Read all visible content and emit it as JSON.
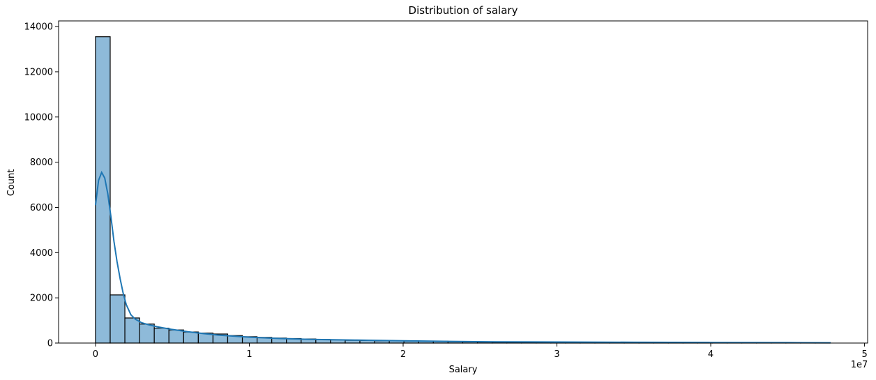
{
  "chart_data": {
    "type": "bar",
    "title": "Distribution of salary",
    "xlabel": "Salary",
    "ylabel": "Count",
    "x_offset_label": "1e7",
    "xlim": [
      -2400000,
      50200000
    ],
    "ylim": [
      0,
      14250
    ],
    "x_ticks": [
      0,
      10000000,
      20000000,
      30000000,
      40000000,
      50000000
    ],
    "x_tick_labels": [
      "0",
      "1",
      "2",
      "3",
      "4",
      "5"
    ],
    "y_ticks": [
      0,
      2000,
      4000,
      6000,
      8000,
      10000,
      12000,
      14000
    ],
    "y_tick_labels": [
      "0",
      "2000",
      "4000",
      "6000",
      "8000",
      "10000",
      "12000",
      "14000"
    ],
    "bin_width": 955000,
    "bin_edges_start": 0,
    "counts": [
      13550,
      2130,
      1110,
      840,
      660,
      580,
      490,
      440,
      400,
      330,
      280,
      250,
      220,
      200,
      180,
      160,
      140,
      120,
      110,
      100,
      95,
      90,
      85,
      80,
      60,
      50,
      45,
      40,
      38,
      35,
      32,
      30,
      28,
      26,
      24,
      22,
      20,
      18,
      17,
      16,
      15,
      14,
      13,
      12,
      11,
      10,
      9,
      8,
      7,
      6
    ],
    "kde": {
      "x": [
        0,
        200000,
        400000,
        600000,
        800000,
        1000000,
        1200000,
        1400000,
        1600000,
        1800000,
        2000000,
        2300000,
        2600000,
        3000000,
        3500000,
        4000000,
        5000000,
        6000000,
        7000000,
        8000000,
        10000000,
        12000000,
        14000000,
        17000000,
        20000000,
        23000000,
        26000000,
        30000000,
        35000000,
        40000000,
        45000000,
        47800000
      ],
      "y": [
        6100,
        7200,
        7550,
        7300,
        6600,
        5600,
        4500,
        3600,
        2850,
        2200,
        1700,
        1250,
        1050,
        900,
        800,
        720,
        600,
        500,
        420,
        350,
        260,
        200,
        160,
        130,
        100,
        75,
        55,
        45,
        35,
        25,
        18,
        12
      ]
    },
    "series": [
      {
        "name": "",
        "color": "#1f77b4",
        "fill": "#8ebad9"
      }
    ],
    "grid": false
  }
}
